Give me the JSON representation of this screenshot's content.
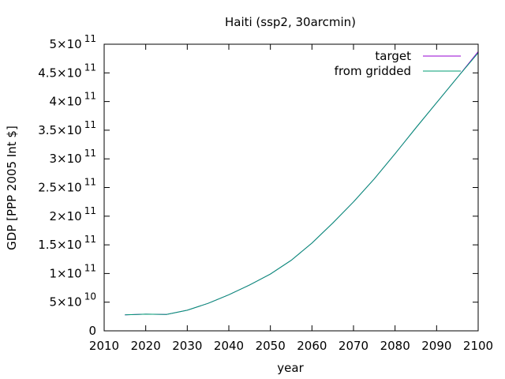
{
  "chart_data": {
    "type": "line",
    "title": "Haiti (ssp2, 30arcmin)",
    "xlabel": "year",
    "ylabel": "GDP [PPP 2005 Int $]",
    "xlim": [
      2010,
      2100
    ],
    "ylim": [
      0,
      500000000000
    ],
    "x_ticks": [
      2010,
      2020,
      2030,
      2040,
      2050,
      2060,
      2070,
      2080,
      2090,
      2100
    ],
    "x_tick_labels": [
      "2010",
      "2020",
      "2030",
      "2040",
      "2050",
      "2060",
      "2070",
      "2080",
      "2090",
      "2100"
    ],
    "y_ticks": [
      {
        "value": 0,
        "mantissa": "0",
        "exponent": ""
      },
      {
        "value": 50000000000,
        "mantissa": "5×10",
        "exponent": "10"
      },
      {
        "value": 100000000000,
        "mantissa": "1×10",
        "exponent": "11"
      },
      {
        "value": 150000000000,
        "mantissa": "1.5×10",
        "exponent": "11"
      },
      {
        "value": 200000000000,
        "mantissa": "2×10",
        "exponent": "11"
      },
      {
        "value": 250000000000,
        "mantissa": "2.5×10",
        "exponent": "11"
      },
      {
        "value": 300000000000,
        "mantissa": "3×10",
        "exponent": "11"
      },
      {
        "value": 350000000000,
        "mantissa": "3.5×10",
        "exponent": "11"
      },
      {
        "value": 400000000000,
        "mantissa": "4×10",
        "exponent": "11"
      },
      {
        "value": 450000000000,
        "mantissa": "4.5×10",
        "exponent": "11"
      },
      {
        "value": 500000000000,
        "mantissa": "5×10",
        "exponent": "11"
      }
    ],
    "grid": false,
    "legend_position": "top-right",
    "series": [
      {
        "name": "target",
        "color": "#9400d3",
        "x": [
          2015,
          2020,
          2025,
          2030,
          2035,
          2040,
          2045,
          2050,
          2055,
          2060,
          2065,
          2070,
          2075,
          2080,
          2085,
          2090,
          2095,
          2100
        ],
        "y": [
          28000000000,
          29000000000,
          28500000000,
          36000000000,
          48000000000,
          63000000000,
          80000000000,
          99000000000,
          123000000000,
          153000000000,
          188000000000,
          225000000000,
          265000000000,
          309000000000,
          354000000000,
          398000000000,
          442000000000,
          487000000000
        ]
      },
      {
        "name": "from gridded",
        "color": "#009e73",
        "x": [
          2015,
          2020,
          2025,
          2030,
          2035,
          2040,
          2045,
          2050,
          2055,
          2060,
          2065,
          2070,
          2075,
          2080,
          2085,
          2090,
          2095,
          2100
        ],
        "y": [
          28000000000,
          29000000000,
          28500000000,
          36000000000,
          48000000000,
          63000000000,
          80000000000,
          99000000000,
          123000000000,
          153000000000,
          188000000000,
          225000000000,
          265000000000,
          309000000000,
          354000000000,
          398000000000,
          442000000000,
          485000000000
        ]
      }
    ]
  }
}
